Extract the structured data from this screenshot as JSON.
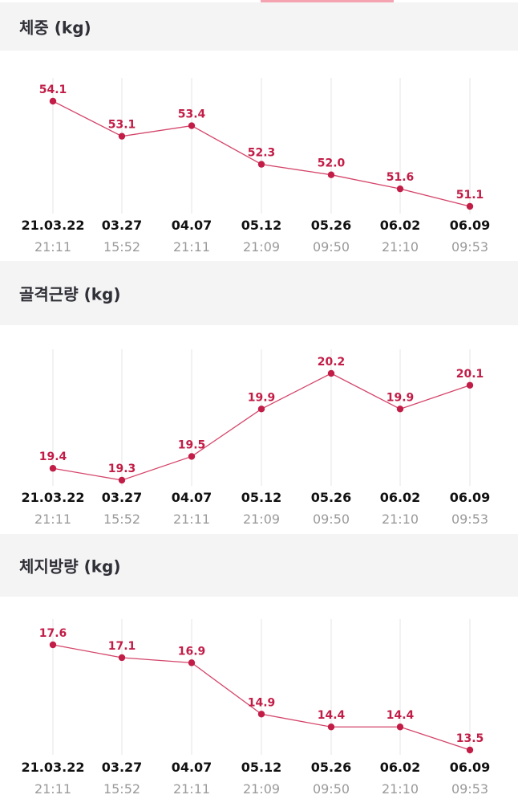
{
  "colors": {
    "line": "#d4456a",
    "point": "#c21d47",
    "label": "#c21d47",
    "grid": "#e6e6e6",
    "header_bg": "#f4f4f4"
  },
  "x_dates": [
    "21.03.22",
    "03.27",
    "04.07",
    "05.12",
    "05.26",
    "06.02",
    "06.09"
  ],
  "x_times": [
    "21:11",
    "15:52",
    "21:11",
    "21:09",
    "09:50",
    "21:10",
    "09:53"
  ],
  "chart_data": [
    {
      "type": "line",
      "title": "체중 (kg)",
      "categories": [
        "21.03.22 21:11",
        "03.27 15:52",
        "04.07 21:11",
        "05.12 21:09",
        "05.26 09:50",
        "06.02 21:10",
        "06.09 09:53"
      ],
      "values": [
        54.1,
        53.1,
        53.4,
        52.3,
        52.0,
        51.6,
        51.1
      ],
      "labels": [
        "54.1",
        "53.1",
        "53.4",
        "52.3",
        "52.0",
        "51.6",
        "51.1"
      ]
    },
    {
      "type": "line",
      "title": "골격근량 (kg)",
      "categories": [
        "21.03.22 21:11",
        "03.27 15:52",
        "04.07 21:11",
        "05.12 21:09",
        "05.26 09:50",
        "06.02 21:10",
        "06.09 09:53"
      ],
      "values": [
        19.4,
        19.3,
        19.5,
        19.9,
        20.2,
        19.9,
        20.1
      ],
      "labels": [
        "19.4",
        "19.3",
        "19.5",
        "19.9",
        "20.2",
        "19.9",
        "20.1"
      ]
    },
    {
      "type": "line",
      "title": "체지방량 (kg)",
      "categories": [
        "21.03.22 21:11",
        "03.27 15:52",
        "04.07 21:11",
        "05.12 21:09",
        "05.26 09:50",
        "06.02 21:10",
        "06.09 09:53"
      ],
      "values": [
        17.6,
        17.1,
        16.9,
        14.9,
        14.4,
        14.4,
        13.5
      ],
      "labels": [
        "17.6",
        "17.1",
        "16.9",
        "14.9",
        "14.4",
        "14.4",
        "13.5"
      ]
    }
  ]
}
